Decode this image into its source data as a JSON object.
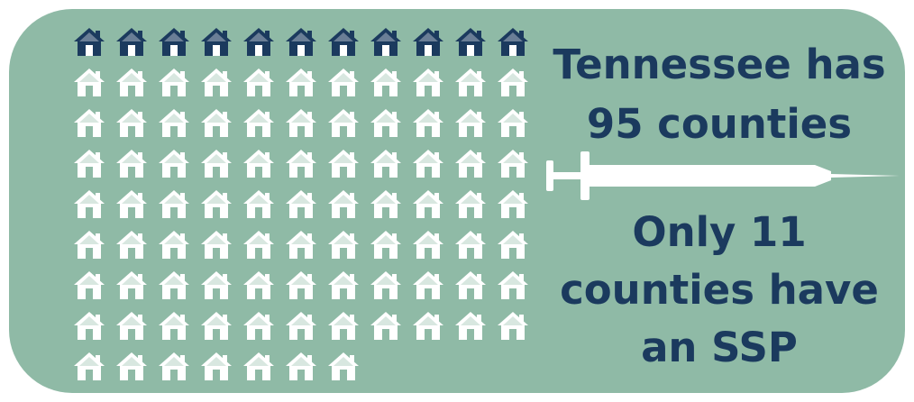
{
  "headline": {
    "line1": "Tennessee has",
    "line2": "95 counties"
  },
  "bottom_text": {
    "line1": "Only 11",
    "line2": "counties have",
    "line3": "an SSP"
  },
  "house_grid": {
    "total_counties": 95,
    "counties_with_ssp": 11,
    "columns": 11,
    "icon": "house-icon",
    "colors": {
      "ssp": "#1b3a5e",
      "no_ssp": "#ffffff"
    }
  },
  "syringe_icon": "syringe-icon",
  "colors": {
    "background": "#8fbaa6",
    "text": "#1b3a5e"
  }
}
